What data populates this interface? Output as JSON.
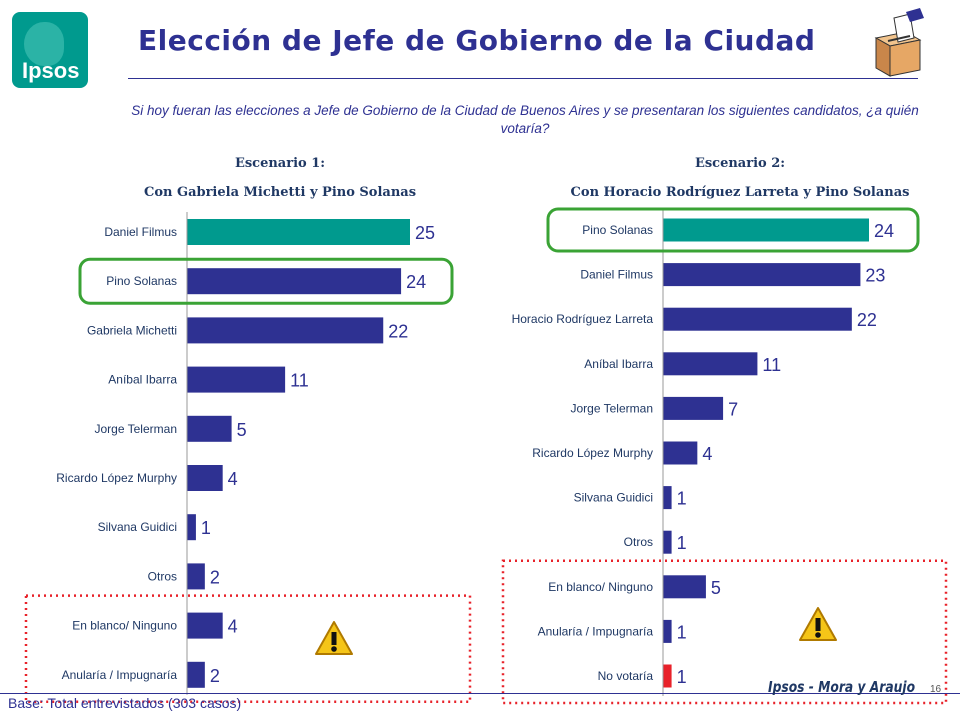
{
  "logo": {
    "text": "Ipsos"
  },
  "title": "Elección de Jefe de Gobierno de la Ciudad",
  "question": "Si hoy fueran las elecciones a Jefe de Gobierno de la Ciudad de Buenos Aires y se presentaran los siguientes candidatos, ¿a quién votaría?",
  "scenario1": {
    "line1": "Escenario 1:",
    "line2": "Con Gabriela Michetti y Pino Solanas"
  },
  "scenario2": {
    "line1": "Escenario 2:",
    "line2": "Con Horacio Rodríguez Larreta y Pino Solanas"
  },
  "base_note": "Base: Total entrevistados (303 casos)",
  "brand": "Ipsos - Mora y Araujo",
  "page_number": "16",
  "colors": {
    "teal": "#009a8e",
    "navy": "#2e3192",
    "red": "#e8222a",
    "highlight_green": "#3aa335",
    "dotted_red": "#e8222a"
  },
  "icons": [
    "ipsos-logo-icon",
    "ballot-box-icon",
    "warning-icon"
  ],
  "chart_data": [
    {
      "type": "bar",
      "orientation": "horizontal",
      "categories": [
        "Daniel Filmus",
        "Pino Solanas",
        "Gabriela Michetti",
        "Aníbal Ibarra",
        "Jorge Telerman",
        "Ricardo López Murphy",
        "Silvana Guidici",
        "Otros",
        "En blanco/ Ninguno",
        "Anularía / Impugnaría"
      ],
      "values": [
        25,
        24,
        22,
        11,
        5,
        4,
        1,
        2,
        4,
        2
      ],
      "bar_colors": [
        "#009a8e",
        "#2e3192",
        "#2e3192",
        "#2e3192",
        "#2e3192",
        "#2e3192",
        "#2e3192",
        "#2e3192",
        "#2e3192",
        "#2e3192"
      ],
      "highlighted": [
        "Pino Solanas"
      ],
      "dotted_group": [
        "En blanco/ Ninguno",
        "Anularía / Impugnaría"
      ],
      "xlim": [
        0,
        25
      ]
    },
    {
      "type": "bar",
      "orientation": "horizontal",
      "categories": [
        "Pino Solanas",
        "Daniel Filmus",
        "Horacio Rodríguez Larreta",
        "Aníbal Ibarra",
        "Jorge Telerman",
        "Ricardo López Murphy",
        "Silvana Guidici",
        "Otros",
        "En blanco/ Ninguno",
        "Anularía / Impugnaría",
        "No votaría"
      ],
      "values": [
        24,
        23,
        22,
        11,
        7,
        4,
        1,
        1,
        5,
        1,
        1
      ],
      "bar_colors": [
        "#009a8e",
        "#2e3192",
        "#2e3192",
        "#2e3192",
        "#2e3192",
        "#2e3192",
        "#2e3192",
        "#2e3192",
        "#2e3192",
        "#2e3192",
        "#e8222a"
      ],
      "highlighted": [
        "Pino Solanas"
      ],
      "dotted_group": [
        "En blanco/ Ninguno",
        "Anularía / Impugnaría",
        "No votaría"
      ],
      "xlim": [
        0,
        24
      ]
    }
  ]
}
